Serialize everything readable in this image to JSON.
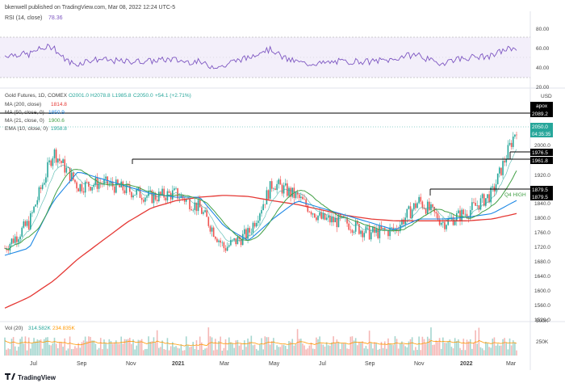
{
  "header": {
    "publisher": "bkenwell published on TradingView.com, Mar 08, 2022 12:24 UTC-5"
  },
  "rsi_panel": {
    "label": "RSI (14, close)",
    "value": "78.36",
    "ticks": [
      "80.00",
      "60.00",
      "40.00",
      "20.00"
    ]
  },
  "price_panel": {
    "symbol_line": {
      "name": "Gold Futures, 1D, COMEX",
      "o": "O2001.0",
      "h": "H2078.8",
      "l": "L1985.8",
      "c": "C2050.0",
      "chg": "+54.1 (+2.71%)"
    },
    "currency": "USD",
    "indicators": [
      {
        "label": "MA (200, close)",
        "value": "1814.8",
        "color": "#e53935"
      },
      {
        "label": "MA (50, close, 0)",
        "value": "1850.9",
        "color": "#1e88e5"
      },
      {
        "label": "MA (21, close, 0)",
        "value": "1900.6",
        "color": "#43a047"
      },
      {
        "label": "EMA (10, close, 0)",
        "value": "1958.8",
        "color": "#26a69a"
      }
    ],
    "price_ticks": [
      "2000.0",
      "1920.0",
      "1840.0",
      "1760.0",
      "1680.0",
      "1600.0",
      "1560.0",
      "1520.0",
      "1640.0",
      "1720.0",
      "1800.0",
      "1880.0"
    ],
    "level_labels": [
      {
        "text": "2089.2",
        "dark": true
      },
      {
        "text": "1976.5",
        "dark": true
      },
      {
        "text": "1961.8",
        "dark": true
      },
      {
        "text": "1879.5",
        "dark": true
      },
      {
        "text": "1879.5",
        "dark": true
      }
    ],
    "approx_tag": "apox",
    "last_price": "2050.0",
    "countdown": "04:35:35",
    "annotation": "Q4 HIGH"
  },
  "volume_panel": {
    "label": "Vol (20)",
    "value1": "314.582K",
    "value2": "234.835K",
    "ticks": [
      "500K",
      "250K"
    ]
  },
  "x_axis": {
    "labels": [
      "Jul",
      "Sep",
      "Nov",
      "2021",
      "Mar",
      "May",
      "Jul",
      "Sep",
      "Nov",
      "2022",
      "Mar"
    ]
  },
  "footer": {
    "brand": "TradingView"
  },
  "chart_data": {
    "type": "line",
    "title": "Gold Futures, 1D, COMEX",
    "x": [
      "2020-06",
      "2020-07",
      "2020-08",
      "2020-09",
      "2020-10",
      "2020-11",
      "2020-12",
      "2021-01",
      "2021-02",
      "2021-03",
      "2021-04",
      "2021-05",
      "2021-06",
      "2021-07",
      "2021-08",
      "2021-09",
      "2021-10",
      "2021-11",
      "2021-12",
      "2022-01",
      "2022-02",
      "2022-03"
    ],
    "series": [
      {
        "name": "Gold Futures",
        "values": [
          1720,
          1790,
          1985,
          1890,
          1900,
          1880,
          1860,
          1870,
          1830,
          1720,
          1760,
          1900,
          1860,
          1800,
          1790,
          1760,
          1770,
          1850,
          1790,
          1820,
          1870,
          2050
        ]
      },
      {
        "name": "MA (200, close)",
        "values": [
          1555,
          1585,
          1630,
          1690,
          1740,
          1790,
          1830,
          1850,
          1860,
          1865,
          1862,
          1850,
          1840,
          1825,
          1810,
          1800,
          1795,
          1795,
          1795,
          1795,
          1800,
          1814.8
        ]
      },
      {
        "name": "MA (50, close, 0)",
        "values": [
          1700,
          1720,
          1850,
          1930,
          1910,
          1890,
          1870,
          1860,
          1860,
          1780,
          1740,
          1800,
          1850,
          1830,
          1810,
          1790,
          1770,
          1800,
          1800,
          1805,
          1815,
          1850.9
        ]
      }
    ],
    "ylabel": "USD",
    "ylim": [
      1520,
      2100
    ],
    "levels": [
      2089.2,
      1976.5,
      1961.8,
      1879.5
    ],
    "rsi_ylim": [
      20,
      90
    ],
    "grid": true
  }
}
